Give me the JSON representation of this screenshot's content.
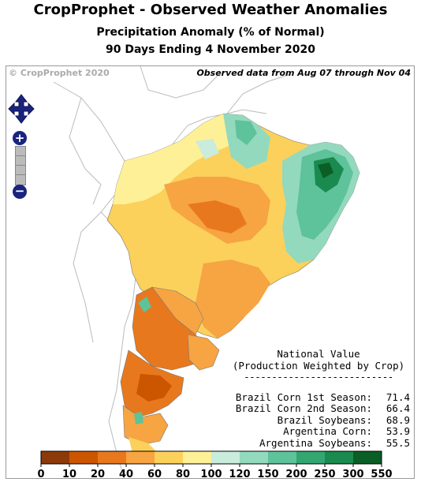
{
  "title": "CropProphet - Observed Weather Anomalies",
  "subtitle1": "Precipitation Anomaly (% of Normal)",
  "subtitle2": "90 Days Ending 4 November 2020",
  "copyright": "© CropProphet 2020",
  "observed_note": "Observed data from Aug 07 through Nov 04",
  "controls": {
    "zoom_in": "+",
    "zoom_out": "−"
  },
  "panel": {
    "title1": "National Value",
    "title2": "(Production Weighted by Crop)",
    "divider": "---------------------------",
    "rows": [
      {
        "label": "Brazil Corn 1st Season:",
        "value": "71.4"
      },
      {
        "label": "Brazil Corn 2nd Season:",
        "value": "66.4"
      },
      {
        "label": "Brazil Soybeans:",
        "value": "68.9"
      },
      {
        "label": "Argentina Corn:",
        "value": "53.9"
      },
      {
        "label": "Argentina Soybeans:",
        "value": "55.5"
      }
    ]
  },
  "legend": {
    "ticks": [
      "0",
      "10",
      "20",
      "40",
      "60",
      "80",
      "100",
      "120",
      "150",
      "200",
      "250",
      "300",
      "550"
    ],
    "colors": [
      "#8c3a0a",
      "#cc5500",
      "#e8781e",
      "#f7a443",
      "#fbd15b",
      "#fdf097",
      "#c9ecdc",
      "#93d9be",
      "#5ec29b",
      "#33a672",
      "#1b8a4e",
      "#0b5e26"
    ]
  }
}
